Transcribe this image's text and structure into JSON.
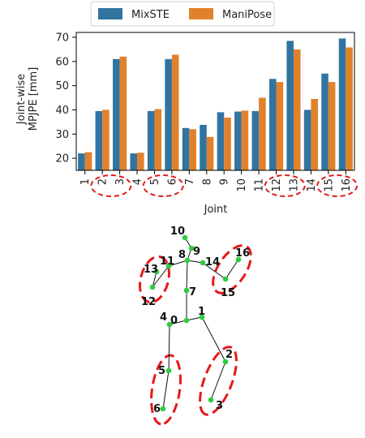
{
  "legend": [
    {
      "name": "MixSTE",
      "color": "#3274a1"
    },
    {
      "name": "ManiPose",
      "color": "#e1812c"
    }
  ],
  "chart_data": {
    "type": "bar",
    "categories": [
      "1",
      "2",
      "3",
      "4",
      "5",
      "6",
      "7",
      "8",
      "9",
      "10",
      "11",
      "12",
      "13",
      "14",
      "15",
      "16"
    ],
    "series": [
      {
        "name": "MixSTE",
        "values": [
          22.0,
          39.5,
          61.0,
          22.0,
          39.5,
          61.0,
          32.5,
          33.8,
          39.0,
          39.3,
          39.5,
          52.8,
          68.5,
          40.0,
          55.0,
          69.5
        ]
      },
      {
        "name": "ManiPose",
        "values": [
          22.5,
          40.0,
          62.0,
          22.3,
          40.3,
          62.8,
          32.0,
          28.8,
          36.8,
          39.7,
          45.0,
          51.5,
          65.0,
          44.5,
          51.5,
          65.8
        ]
      }
    ],
    "xlabel": "Joint",
    "ylabel": "Joint-wise\nMPJPE [mm]",
    "ylim": [
      15,
      72
    ],
    "yticks": [
      20,
      30,
      40,
      50,
      60,
      70
    ],
    "highlighted_groups": [
      [
        "2",
        "3"
      ],
      [
        "5",
        "6"
      ],
      [
        "12",
        "13"
      ],
      [
        "15",
        "16"
      ]
    ],
    "grid": false,
    "legend_placement": "top-center"
  },
  "skeleton": {
    "joints": [
      {
        "id": "0",
        "label": "0"
      },
      {
        "id": "1",
        "label": "1"
      },
      {
        "id": "2",
        "label": "2"
      },
      {
        "id": "3",
        "label": "3"
      },
      {
        "id": "4",
        "label": "4"
      },
      {
        "id": "5",
        "label": "5"
      },
      {
        "id": "6",
        "label": "6"
      },
      {
        "id": "7",
        "label": "7"
      },
      {
        "id": "8",
        "label": "8"
      },
      {
        "id": "9",
        "label": "9"
      },
      {
        "id": "10",
        "label": "10"
      },
      {
        "id": "11",
        "label": "11"
      },
      {
        "id": "12",
        "label": "12"
      },
      {
        "id": "13",
        "label": "13"
      },
      {
        "id": "14",
        "label": "14"
      },
      {
        "id": "15",
        "label": "15"
      },
      {
        "id": "16",
        "label": "16"
      }
    ],
    "bones": [
      [
        "0",
        "1"
      ],
      [
        "1",
        "2"
      ],
      [
        "2",
        "3"
      ],
      [
        "0",
        "4"
      ],
      [
        "4",
        "5"
      ],
      [
        "5",
        "6"
      ],
      [
        "0",
        "7"
      ],
      [
        "7",
        "8"
      ],
      [
        "8",
        "9"
      ],
      [
        "9",
        "10"
      ],
      [
        "8",
        "11"
      ],
      [
        "11",
        "12"
      ],
      [
        "12",
        "13"
      ],
      [
        "8",
        "14"
      ],
      [
        "14",
        "15"
      ],
      [
        "15",
        "16"
      ]
    ],
    "highlighted_limbs": [
      [
        "12",
        "13"
      ],
      [
        "15",
        "16"
      ],
      [
        "5",
        "6"
      ],
      [
        "2",
        "3"
      ]
    ],
    "joint_color": "#2ecc40",
    "bone_color": "#111111",
    "highlight_color": "#e31a1c"
  }
}
